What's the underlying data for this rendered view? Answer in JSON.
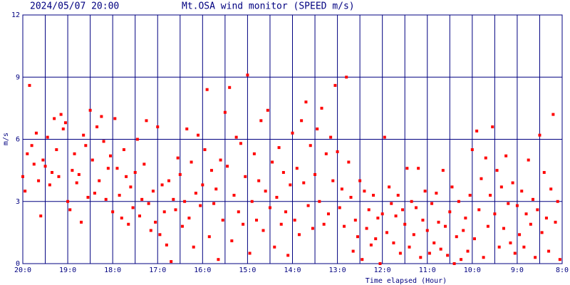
{
  "chart_data": {
    "type": "scatter",
    "title": "2024/05/07 20:00",
    "subtitle": "Mt.OSA wind monitor (SPEED m/s)",
    "y_label": "m/s",
    "x_label": "Time elapsed (Hour)",
    "color": "#ff0000",
    "grid_color": "#000080",
    "grid": true,
    "xlim": [
      0,
      12
    ],
    "ylim": [
      0,
      12
    ],
    "yticks": [
      0,
      3,
      6,
      9,
      12
    ],
    "xticks": [
      {
        "value": 0,
        "label": "20:0"
      },
      {
        "value": 1,
        "label": "19:0"
      },
      {
        "value": 2,
        "label": "18:0"
      },
      {
        "value": 3,
        "label": "17:0"
      },
      {
        "value": 4,
        "label": "16:0"
      },
      {
        "value": 5,
        "label": "15:0"
      },
      {
        "value": 6,
        "label": "14:0"
      },
      {
        "value": 7,
        "label": "13:0"
      },
      {
        "value": 8,
        "label": "12:0"
      },
      {
        "value": 9,
        "label": "11:0"
      },
      {
        "value": 10,
        "label": "10:0"
      },
      {
        "value": 11,
        "label": "9:0"
      },
      {
        "value": 12,
        "label": "8:0"
      }
    ],
    "xminorticks": [
      0.5,
      1.5,
      2.5,
      3.5,
      4.5,
      5.5,
      6.5,
      7.5,
      8.5,
      9.5,
      10.5,
      11.5
    ],
    "x": [
      0,
      0.05,
      0.1,
      0.15,
      0.2,
      0.25,
      0.3,
      0.35,
      0.4,
      0.45,
      0.5,
      0.55,
      0.6,
      0.65,
      0.7,
      0.75,
      0.8,
      0.85,
      0.9,
      0.95,
      1,
      1.05,
      1.1,
      1.15,
      1.2,
      1.25,
      1.3,
      1.35,
      1.4,
      1.45,
      1.5,
      1.55,
      1.6,
      1.65,
      1.7,
      1.75,
      1.8,
      1.85,
      1.9,
      1.95,
      2,
      2.05,
      2.1,
      2.15,
      2.2,
      2.25,
      2.3,
      2.35,
      2.4,
      2.45,
      2.5,
      2.55,
      2.6,
      2.65,
      2.7,
      2.75,
      2.8,
      2.85,
      2.9,
      2.95,
      3,
      3.05,
      3.1,
      3.15,
      3.2,
      3.25,
      3.3,
      3.35,
      3.4,
      3.45,
      3.5,
      3.55,
      3.6,
      3.65,
      3.7,
      3.75,
      3.8,
      3.85,
      3.9,
      3.95,
      4,
      4.05,
      4.1,
      4.15,
      4.2,
      4.25,
      4.3,
      4.35,
      4.4,
      4.45,
      4.5,
      4.55,
      4.6,
      4.65,
      4.7,
      4.75,
      4.8,
      4.85,
      4.9,
      4.95,
      5,
      5.05,
      5.1,
      5.15,
      5.2,
      5.25,
      5.3,
      5.35,
      5.4,
      5.45,
      5.5,
      5.55,
      5.6,
      5.65,
      5.7,
      5.75,
      5.8,
      5.85,
      5.9,
      5.95,
      6,
      6.05,
      6.1,
      6.15,
      6.2,
      6.25,
      6.3,
      6.35,
      6.4,
      6.45,
      6.5,
      6.55,
      6.6,
      6.65,
      6.7,
      6.75,
      6.8,
      6.85,
      6.9,
      6.95,
      7,
      7.05,
      7.1,
      7.15,
      7.2,
      7.25,
      7.3,
      7.35,
      7.4,
      7.45,
      7.5,
      7.55,
      7.6,
      7.65,
      7.7,
      7.75,
      7.8,
      7.85,
      7.9,
      7.95,
      8,
      8.05,
      8.1,
      8.15,
      8.2,
      8.25,
      8.3,
      8.35,
      8.4,
      8.45,
      8.5,
      8.55,
      8.6,
      8.65,
      8.7,
      8.75,
      8.8,
      8.85,
      8.9,
      8.95,
      9,
      9.05,
      9.1,
      9.15,
      9.2,
      9.25,
      9.3,
      9.35,
      9.4,
      9.45,
      9.5,
      9.55,
      9.6,
      9.65,
      9.7,
      9.75,
      9.8,
      9.85,
      9.9,
      9.95,
      10,
      10.05,
      10.1,
      10.15,
      10.2,
      10.25,
      10.3,
      10.35,
      10.4,
      10.45,
      10.5,
      10.55,
      10.6,
      10.65,
      10.7,
      10.75,
      10.8,
      10.85,
      10.9,
      10.95,
      11,
      11.05,
      11.1,
      11.15,
      11.2,
      11.25,
      11.3,
      11.35,
      11.4,
      11.45,
      11.5,
      11.55,
      11.6,
      11.65,
      11.7,
      11.75,
      11.8,
      11.85,
      11.9,
      11.95
    ],
    "y": [
      4.2,
      3.5,
      5.3,
      8.6,
      5.7,
      4.8,
      6.3,
      4.0,
      2.3,
      5.0,
      4.7,
      6.1,
      3.8,
      4.4,
      7.0,
      5.5,
      4.2,
      7.2,
      6.5,
      6.8,
      3.0,
      2.6,
      4.5,
      5.3,
      3.9,
      4.3,
      2.0,
      6.2,
      5.7,
      3.2,
      7.4,
      5.0,
      3.4,
      6.6,
      4.0,
      7.1,
      5.9,
      3.1,
      4.6,
      5.2,
      2.5,
      7.0,
      4.6,
      3.3,
      2.2,
      5.5,
      4.2,
      1.9,
      3.7,
      2.7,
      4.4,
      6.0,
      2.3,
      3.1,
      4.8,
      6.9,
      2.9,
      1.6,
      3.5,
      2.0,
      6.6,
      1.4,
      3.8,
      2.5,
      0.9,
      4.0,
      0.1,
      3.1,
      2.6,
      5.1,
      4.3,
      1.8,
      3.0,
      6.5,
      2.2,
      4.9,
      0.8,
      3.4,
      6.2,
      2.8,
      3.8,
      5.5,
      8.4,
      1.3,
      4.5,
      2.9,
      3.6,
      0.2,
      5.0,
      2.1,
      7.3,
      4.7,
      8.5,
      1.1,
      3.3,
      6.1,
      2.5,
      5.8,
      1.9,
      4.2,
      9.1,
      0.5,
      3.0,
      5.3,
      2.1,
      4.0,
      6.9,
      1.6,
      3.5,
      7.4,
      2.7,
      4.9,
      0.8,
      3.2,
      5.6,
      1.9,
      4.4,
      2.5,
      0.4,
      3.8,
      6.3,
      2.1,
      4.6,
      1.4,
      6.9,
      3.9,
      7.8,
      2.8,
      5.7,
      1.7,
      4.3,
      6.5,
      3.0,
      7.5,
      1.9,
      5.3,
      2.4,
      6.1,
      4.0,
      8.6,
      5.4,
      2.7,
      3.6,
      1.8,
      9.0,
      4.9,
      3.2,
      0.6,
      2.1,
      1.3,
      4.0,
      0.2,
      3.5,
      1.7,
      2.6,
      0.9,
      3.3,
      1.2,
      2.2,
      0.0,
      2.4,
      6.1,
      1.5,
      3.7,
      2.9,
      1.0,
      2.3,
      3.3,
      0.5,
      2.6,
      1.9,
      4.6,
      0.8,
      3.0,
      1.4,
      2.7,
      4.6,
      0.3,
      2.1,
      3.5,
      1.6,
      0.5,
      2.9,
      1.0,
      3.4,
      2.0,
      0.7,
      4.5,
      1.8,
      0.4,
      2.5,
      3.7,
      0.0,
      1.3,
      3.0,
      0.2,
      1.6,
      2.2,
      0.6,
      3.3,
      5.5,
      1.2,
      6.4,
      2.6,
      4.1,
      0.3,
      5.1,
      1.8,
      3.3,
      6.6,
      2.4,
      4.5,
      0.8,
      3.7,
      1.7,
      5.2,
      2.9,
      1.0,
      3.9,
      0.5,
      2.8,
      1.4,
      3.5,
      0.8,
      2.4,
      5.0,
      1.9,
      3.1,
      0.3,
      2.6,
      6.2,
      1.5,
      4.4,
      2.2,
      0.6,
      3.6,
      7.2,
      2.0,
      3.0,
      0.2
    ]
  }
}
